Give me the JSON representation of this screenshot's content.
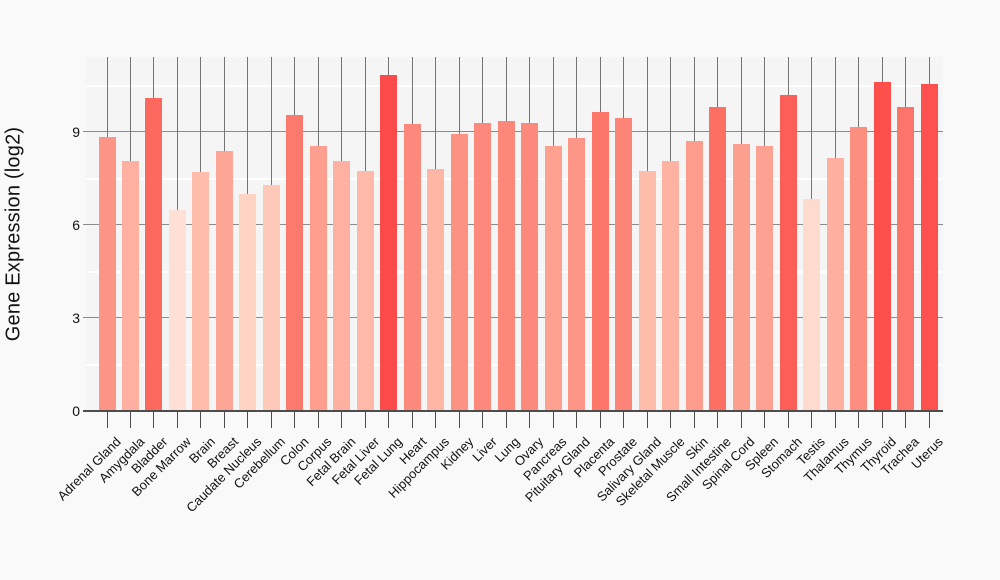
{
  "chart_data": {
    "type": "bar",
    "title": "",
    "xlabel": "",
    "ylabel": "Gene Expression (log2)",
    "ylim": [
      0,
      11.42
    ],
    "yticks": [
      0,
      3,
      6,
      9
    ],
    "minor_gridlines": [
      1.5,
      4.5,
      7.5,
      10.5
    ],
    "grid": "horizontal major gray lines, white minor lines, vertical gray category lines behind bars",
    "legend": "none",
    "x_label_rotation_deg": 45,
    "categories": [
      "Adrenal Gland",
      "Amygdala",
      "Bladder",
      "Bone Marrow",
      "Brain",
      "Breast",
      "Caudate Nucleus",
      "Cerebellum",
      "Colon",
      "Corpus",
      "Fetal Brain",
      "Fetal Liver",
      "Fetal Lung",
      "Heart",
      "Hippocampus",
      "Kidney",
      "Liver",
      "Lung",
      "Ovary",
      "Pancreas",
      "Pituitary Gland",
      "Placenta",
      "Prostate",
      "Salivary Gland",
      "Skeletal Muscle",
      "Skin",
      "Small Intestine",
      "Spinal Cord",
      "Spleen",
      "Stomach",
      "Testis",
      "Thalamus",
      "Thymus",
      "Thyroid",
      "Trachea",
      "Uterus"
    ],
    "values": [
      8.85,
      8.05,
      10.1,
      6.5,
      7.7,
      8.4,
      7.0,
      7.3,
      9.55,
      8.55,
      8.05,
      7.75,
      10.85,
      9.25,
      7.8,
      8.95,
      9.3,
      9.35,
      9.3,
      8.55,
      8.8,
      9.65,
      9.45,
      7.75,
      8.05,
      8.7,
      9.8,
      8.6,
      8.55,
      10.2,
      6.85,
      8.15,
      9.15,
      10.6,
      9.8,
      10.55
    ],
    "bar_colors": [
      "#fc9585",
      "#feb1a1",
      "#fc6a5f",
      "#fee0d4",
      "#febcab",
      "#fda695",
      "#fed3c3",
      "#fec9b8",
      "#fc7a6d",
      "#fd9e8e",
      "#feb1a0",
      "#feb9a8",
      "#fb4b4b",
      "#fc8a7c",
      "#feb6a5",
      "#fc9282",
      "#fc897b",
      "#fc887a",
      "#fc8a7c",
      "#fda090",
      "#fd9686",
      "#fc766a",
      "#fc8577",
      "#febcab",
      "#feb2a1",
      "#fd9c8c",
      "#fc6f63",
      "#fd9f8f",
      "#fda192",
      "#fc5f57",
      "#fedbce",
      "#feb0a0",
      "#fc8e80",
      "#fd4f4c",
      "#fc756a",
      "#fd5150"
    ],
    "colors": {
      "value_scale_low": "#fee0d4",
      "value_scale_high": "#fb4b4b",
      "major_gridline": "#8a8a8a",
      "category_gridline": "#757575",
      "axis_line": "#4d4d4d",
      "panel_background": "#f5f5f6",
      "page_background": "#f9f9f9",
      "text": "#111111"
    }
  }
}
